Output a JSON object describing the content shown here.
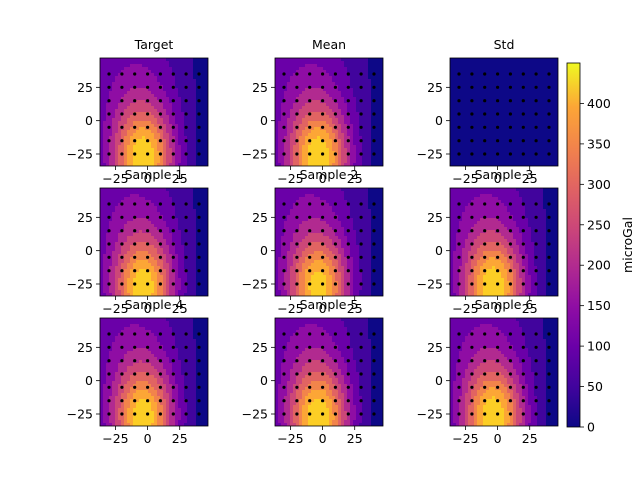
{
  "chart_data": {
    "type": "contour_grid",
    "panels": [
      {
        "id": "target",
        "title": "Target",
        "kind": "field",
        "peak": 440
      },
      {
        "id": "mean",
        "title": "Mean",
        "kind": "field",
        "peak": 440
      },
      {
        "id": "std",
        "title": "Std",
        "kind": "std",
        "peak": 30
      },
      {
        "id": "s1",
        "title": "Sample 1",
        "kind": "field",
        "peak": 430
      },
      {
        "id": "s2",
        "title": "Sample 2",
        "kind": "field",
        "peak": 420
      },
      {
        "id": "s3",
        "title": "Sample 3",
        "kind": "field",
        "peak": 440
      },
      {
        "id": "s4",
        "title": "Sample 4",
        "kind": "field",
        "peak": 430
      },
      {
        "id": "s5",
        "title": "Sample 5",
        "kind": "field",
        "peak": 435
      },
      {
        "id": "s6",
        "title": "Sample 6",
        "kind": "field",
        "peak": 440
      }
    ],
    "x_range": [
      -37,
      47
    ],
    "y_range": [
      -34,
      47
    ],
    "x_ticks": [
      -25,
      0,
      25
    ],
    "y_ticks": [
      -25,
      0,
      25
    ],
    "y_ticks_bottom_row": [
      -25,
      0,
      25
    ],
    "colorbar": {
      "label": "microGal",
      "min": 0,
      "max": 450,
      "ticks": [
        0,
        50,
        100,
        150,
        200,
        250,
        300,
        350,
        400
      ],
      "levels": [
        0,
        50,
        100,
        150,
        200,
        250,
        300,
        350,
        400,
        450
      ]
    },
    "stations": {
      "x": [
        -30,
        -20,
        -10,
        0,
        10,
        20,
        30,
        40
      ],
      "y": [
        -25,
        -15,
        -5,
        5,
        15,
        25,
        35
      ]
    },
    "colors": [
      "#0d0887",
      "#41049d",
      "#6a00a8",
      "#8f0da4",
      "#b12a90",
      "#cc4778",
      "#e16462",
      "#f2844b",
      "#fca636",
      "#fcce25"
    ]
  }
}
